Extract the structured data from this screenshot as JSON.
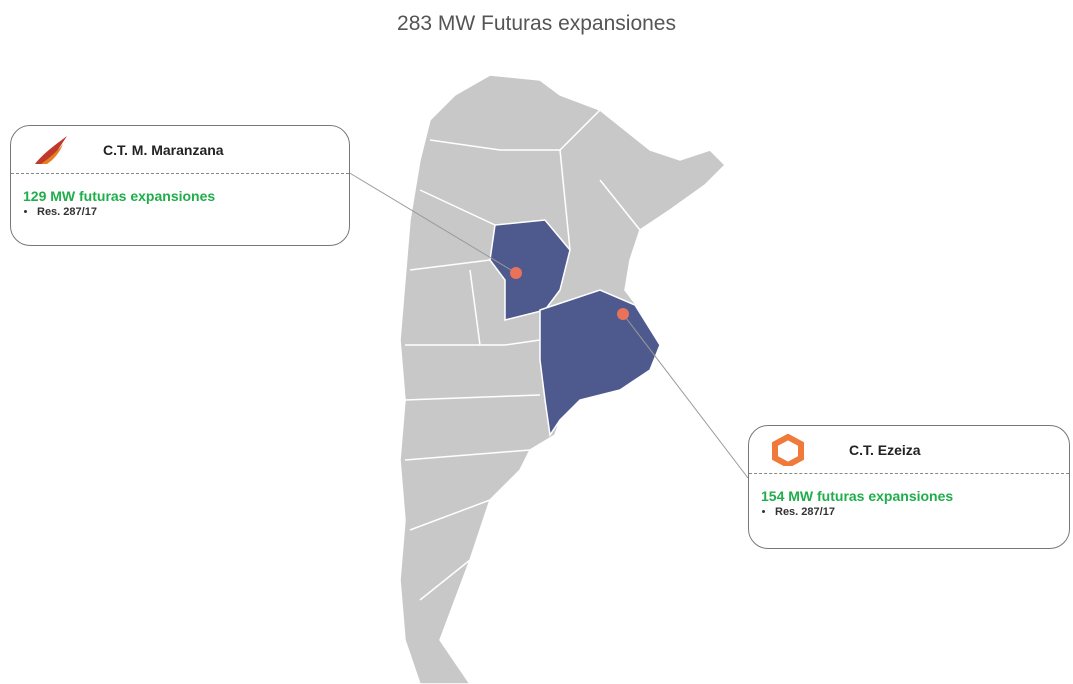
{
  "title": "283 MW Futuras expansiones",
  "callouts": [
    {
      "name": "C.T. M. Maranzana",
      "headline": "129 MW futuras expansiones",
      "bullets": [
        "Res. 287/17"
      ]
    },
    {
      "name": "C.T. Ezeiza",
      "headline": "154 MW futuras expansiones",
      "bullets": [
        "Res. 287/17"
      ]
    }
  ]
}
